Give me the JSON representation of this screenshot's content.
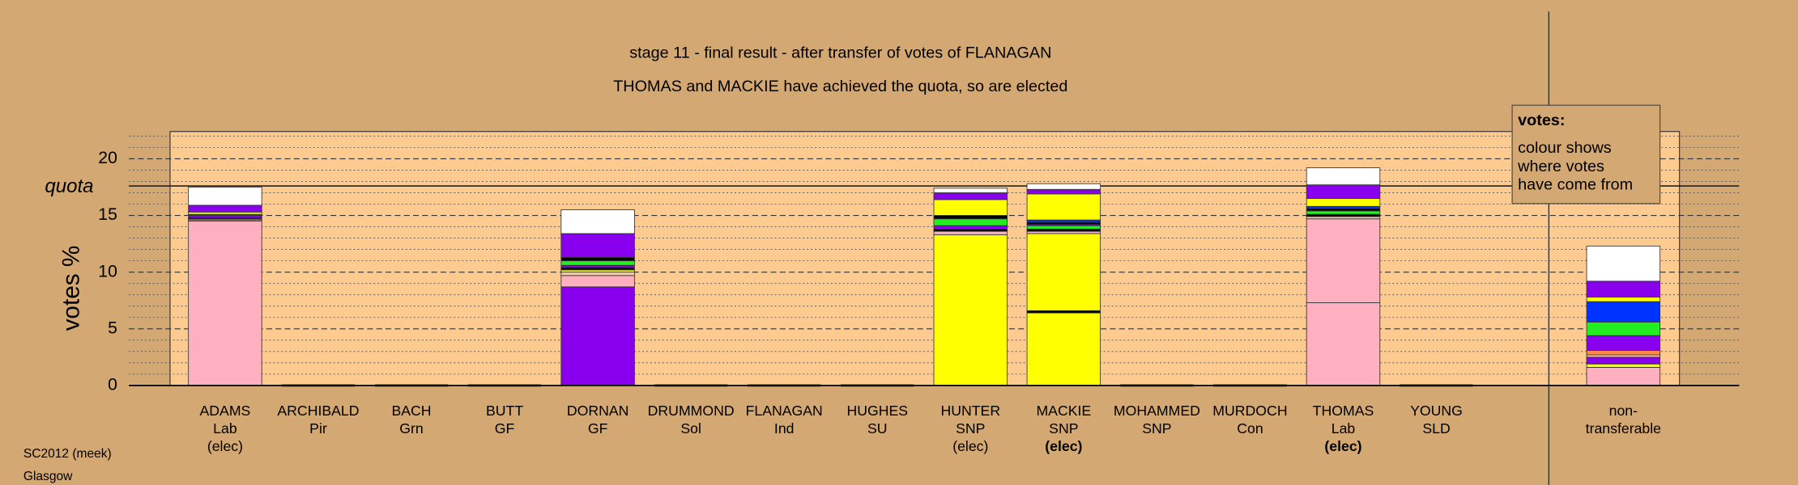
{
  "chart_data": {
    "type": "stacked_bar",
    "title": "stage 11 - final result - after transfer of votes of FLANAGAN",
    "subtitle": "THOMAS and MACKIE have achieved the quota, so are elected",
    "ylabel": "votes %",
    "ylim": [
      0,
      22.4
    ],
    "yticks": [
      0,
      5,
      10,
      15,
      20
    ],
    "minor_yticks": [
      1,
      2,
      3,
      4,
      6,
      7,
      8,
      9,
      11,
      12,
      13,
      14,
      16,
      17,
      18,
      19,
      21,
      22
    ],
    "quota": {
      "label": "quota",
      "value": 17.6
    },
    "categories": [
      {
        "label_lines": [
          "ADAMS",
          "Lab",
          "(elec)"
        ],
        "bold_line": null,
        "segments": [
          {
            "color": "#ffb0c0",
            "value": 14.5
          },
          {
            "color": "#ffc8b0",
            "value": 0.1
          },
          {
            "color": "#22ee22",
            "value": 0.1
          },
          {
            "color": "#000000",
            "value": 0.1
          },
          {
            "color": "#8800ee",
            "value": 0.2
          },
          {
            "color": "#0033ff",
            "value": 0.1
          },
          {
            "color": "#ffff00",
            "value": 0.2
          },
          {
            "color": "#8800ee",
            "value": 0.6
          },
          {
            "color": "#ffffff",
            "value": 1.6
          }
        ]
      },
      {
        "label_lines": [
          "ARCHIBALD",
          "Pir"
        ],
        "bold_line": null,
        "segments": []
      },
      {
        "label_lines": [
          "BACH",
          "Grn"
        ],
        "bold_line": null,
        "segments": []
      },
      {
        "label_lines": [
          "BUTT",
          "GF"
        ],
        "bold_line": null,
        "segments": []
      },
      {
        "label_lines": [
          "DORNAN",
          "GF"
        ],
        "bold_line": null,
        "segments": [
          {
            "color": "#8800ee",
            "value": 8.7
          },
          {
            "color": "#ffb0c0",
            "value": 1.0
          },
          {
            "color": "#ffc8b0",
            "value": 0.3
          },
          {
            "color": "#ffff00",
            "value": 0.2
          },
          {
            "color": "#000000",
            "value": 0.2
          },
          {
            "color": "#8800ee",
            "value": 0.2
          },
          {
            "color": "#22ee22",
            "value": 0.4
          },
          {
            "color": "#000000",
            "value": 0.3
          },
          {
            "color": "#8800ee",
            "value": 2.1
          },
          {
            "color": "#ffffff",
            "value": 2.1
          }
        ]
      },
      {
        "label_lines": [
          "DRUMMOND",
          "Sol"
        ],
        "bold_line": null,
        "segments": []
      },
      {
        "label_lines": [
          "FLANAGAN",
          "Ind"
        ],
        "bold_line": null,
        "segments": []
      },
      {
        "label_lines": [
          "HUGHES",
          "SU"
        ],
        "bold_line": null,
        "segments": []
      },
      {
        "label_lines": [
          "HUNTER",
          "SNP",
          "(elec)"
        ],
        "bold_line": null,
        "segments": [
          {
            "color": "#ffff00",
            "value": 13.3
          },
          {
            "color": "#ffb0c0",
            "value": 0.3
          },
          {
            "color": "#000000",
            "value": 0.2
          },
          {
            "color": "#8800ee",
            "value": 0.3
          },
          {
            "color": "#22ee22",
            "value": 0.6
          },
          {
            "color": "#000000",
            "value": 0.3
          },
          {
            "color": "#ffff00",
            "value": 1.4
          },
          {
            "color": "#8800ee",
            "value": 0.6
          },
          {
            "color": "#ffffff",
            "value": 0.4
          }
        ]
      },
      {
        "label_lines": [
          "MACKIE",
          "SNP",
          "(elec)"
        ],
        "bold_line": 2,
        "segments": [
          {
            "color": "#ffff00",
            "value": 6.4
          },
          {
            "color": "#000000",
            "value": 0.2
          },
          {
            "color": "#ffff00",
            "value": 6.8
          },
          {
            "color": "#ffb0c0",
            "value": 0.2
          },
          {
            "color": "#000000",
            "value": 0.2
          },
          {
            "color": "#22ee22",
            "value": 0.3
          },
          {
            "color": "#8800ee",
            "value": 0.1
          },
          {
            "color": "#000000",
            "value": 0.2
          },
          {
            "color": "#0033ff",
            "value": 0.2
          },
          {
            "color": "#ffff00",
            "value": 2.3
          },
          {
            "color": "#8800ee",
            "value": 0.4
          },
          {
            "color": "#ffffff",
            "value": 0.5
          }
        ]
      },
      {
        "label_lines": [
          "MOHAMMED",
          "SNP"
        ],
        "bold_line": null,
        "segments": []
      },
      {
        "label_lines": [
          "MURDOCH",
          "Con"
        ],
        "bold_line": null,
        "segments": []
      },
      {
        "label_lines": [
          "THOMAS",
          "Lab",
          "(elec)"
        ],
        "bold_line": 2,
        "segments": [
          {
            "color": "#ffb0c0",
            "value": 7.3
          },
          {
            "color": "#ffb0c0",
            "value": 7.4
          },
          {
            "color": "#ffc8b0",
            "value": 0.2
          },
          {
            "color": "#000000",
            "value": 0.2
          },
          {
            "color": "#22ee22",
            "value": 0.3
          },
          {
            "color": "#000000",
            "value": 0.2
          },
          {
            "color": "#0033ff",
            "value": 0.2
          },
          {
            "color": "#ffff00",
            "value": 0.7
          },
          {
            "color": "#8800ee",
            "value": 1.2
          },
          {
            "color": "#ffffff",
            "value": 1.5
          }
        ]
      },
      {
        "label_lines": [
          "YOUNG",
          "SLD"
        ],
        "bold_line": null,
        "segments": []
      }
    ],
    "nontransferable": {
      "label_lines": [
        "non-",
        "transferable"
      ],
      "segments": [
        {
          "color": "#ffb0c0",
          "value": 1.6
        },
        {
          "color": "#ffff00",
          "value": 0.3
        },
        {
          "color": "#8800ee",
          "value": 0.6
        },
        {
          "color": "#ffc8b0",
          "value": 0.2
        },
        {
          "color": "#ff8844",
          "value": 0.4
        },
        {
          "color": "#8800ee",
          "value": 1.3
        },
        {
          "color": "#22ee22",
          "value": 1.2
        },
        {
          "color": "#0033ff",
          "value": 1.8
        },
        {
          "color": "#ffff00",
          "value": 0.4
        },
        {
          "color": "#8800ee",
          "value": 1.4
        },
        {
          "color": "#ffffff",
          "value": 3.1
        }
      ]
    },
    "legend": {
      "title": "votes:",
      "lines": [
        "colour shows",
        "where votes",
        "have come from"
      ]
    },
    "footer": [
      "SC2012 (meek)",
      "Glasgow"
    ]
  }
}
